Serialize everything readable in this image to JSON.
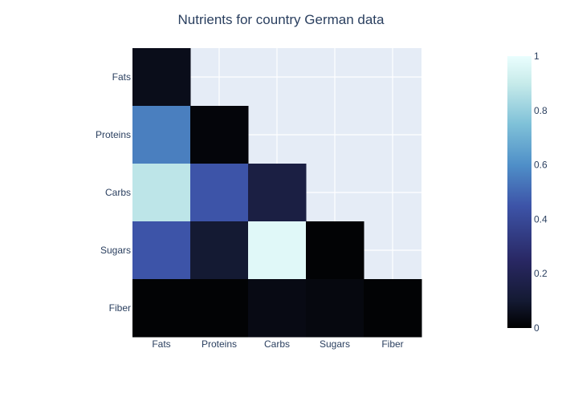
{
  "chart_data": {
    "type": "heatmap",
    "title": "Nutrients for country German data",
    "x_categories": [
      "Fats",
      "Proteins",
      "Carbs",
      "Sugars",
      "Fiber"
    ],
    "y_categories": [
      "Fats",
      "Proteins",
      "Carbs",
      "Sugars",
      "Fiber"
    ],
    "z": [
      [
        0.05,
        null,
        null,
        null,
        null
      ],
      [
        0.56,
        0.02,
        null,
        null,
        null
      ],
      [
        0.88,
        0.45,
        0.15,
        null,
        null
      ],
      [
        0.45,
        0.1,
        0.97,
        0.01,
        null
      ],
      [
        0.01,
        0.01,
        0.04,
        0.03,
        0.01
      ]
    ],
    "zlim": [
      0,
      1
    ],
    "colorbar": {
      "ticks": [
        0,
        0.2,
        0.4,
        0.6,
        0.8,
        1
      ],
      "tick_labels": [
        "0",
        "0.2",
        "0.4",
        "0.6",
        "0.8",
        "1"
      ],
      "colorscale": "IceFire-like dark-to-cyan",
      "stops": [
        [
          0.0,
          "#000000"
        ],
        [
          0.1,
          "#141a33"
        ],
        [
          0.25,
          "#292864"
        ],
        [
          0.45,
          "#3d54a8"
        ],
        [
          0.6,
          "#4f8fc8"
        ],
        [
          0.75,
          "#7fc1d8"
        ],
        [
          0.9,
          "#c7ebea"
        ],
        [
          1.0,
          "#eafefe"
        ]
      ]
    },
    "grid": true,
    "plot_background": "#e5ecf6",
    "text_color": "#2a3f5f"
  }
}
